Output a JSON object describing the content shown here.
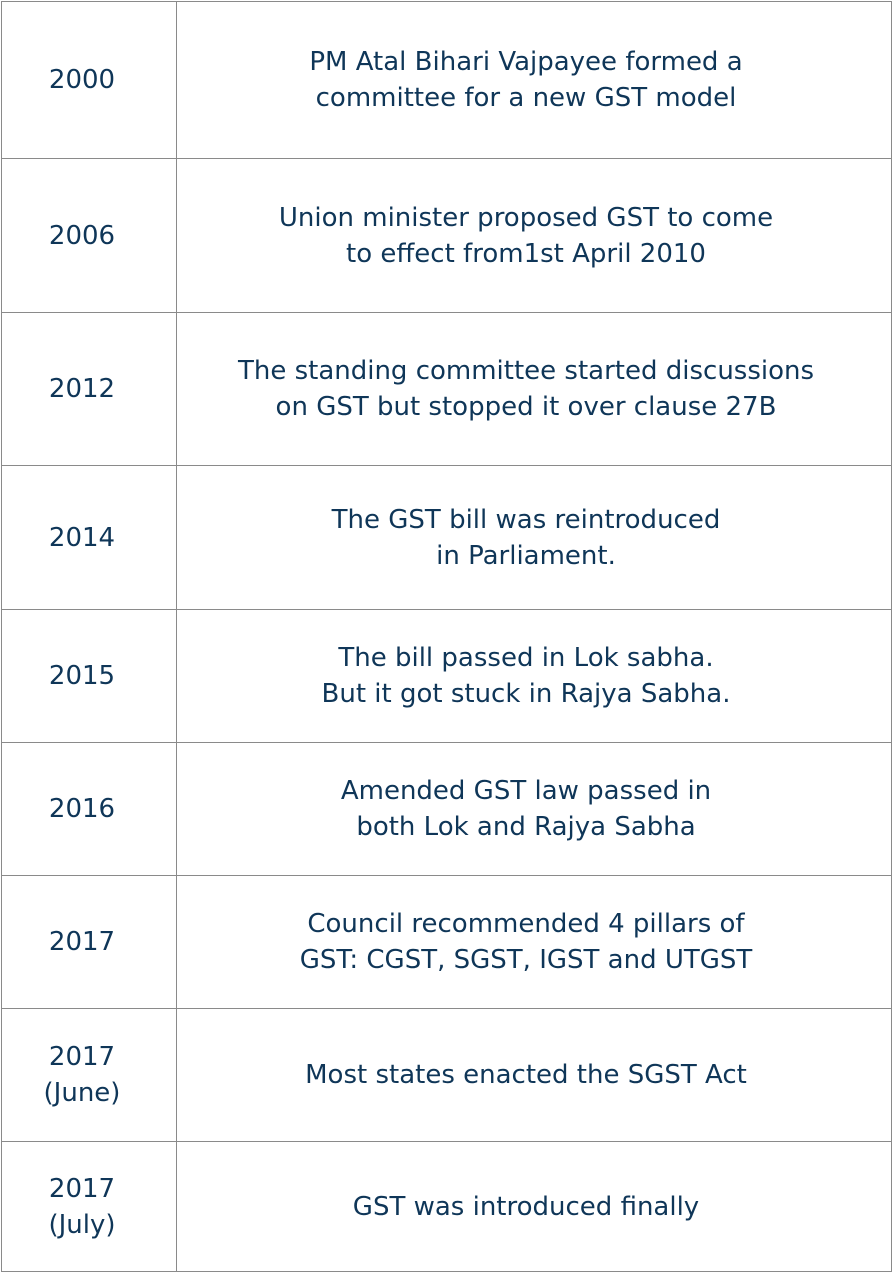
{
  "colors": {
    "text": "#0f3658",
    "border": "#8a8a8a",
    "background": "#ffffff"
  },
  "timeline": [
    {
      "year": "2000",
      "event": "PM Atal Bihari Vajpayee formed a\ncommittee for a new GST model"
    },
    {
      "year": "2006",
      "event": "Union minister proposed GST to come\nto effect from1st April 2010"
    },
    {
      "year": "2012",
      "event": "The standing committee started discussions\non GST but stopped it over clause 27B"
    },
    {
      "year": "2014",
      "event": "The GST bill was reintroduced\nin Parliament."
    },
    {
      "year": "2015",
      "event": "The bill passed in Lok sabha.\nBut it got stuck in Rajya Sabha."
    },
    {
      "year": "2016",
      "event": "Amended GST law passed in\nboth Lok and Rajya Sabha"
    },
    {
      "year": "2017",
      "event": "Council recommended 4 pillars of\nGST: CGST, SGST, IGST and UTGST"
    },
    {
      "year": "2017\n(June)",
      "event": "Most states enacted the SGST Act"
    },
    {
      "year": "2017\n(July)",
      "event": "GST was introduced finally"
    }
  ]
}
